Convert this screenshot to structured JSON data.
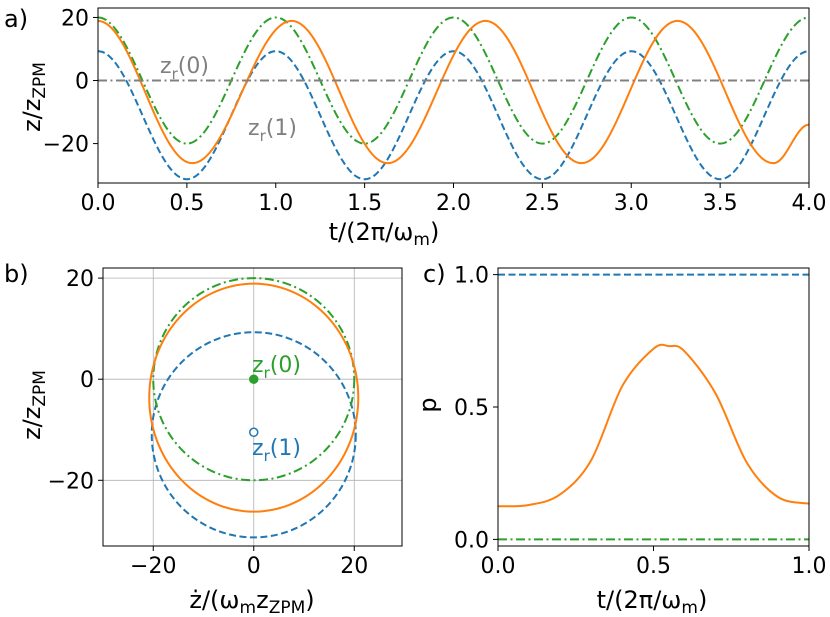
{
  "chart_data": [
    {
      "panel": "a)",
      "type": "line",
      "xlabel_main": "t/(2π/ω",
      "xlabel_sub": "m",
      "xlabel_close": ")",
      "ylabel_main": "z/z",
      "ylabel_sub": "ZPM",
      "xlim": [
        0.0,
        4.0
      ],
      "ylim": [
        -32.5,
        23.0
      ],
      "xticks": [
        "0.0",
        "0.5",
        "1.0",
        "1.5",
        "2.0",
        "2.5",
        "3.0",
        "3.5",
        "4.0"
      ],
      "yticks": [
        "−20",
        "0",
        "20"
      ],
      "annotations": [
        {
          "main": "z",
          "sub": "r",
          "rest": "(0)",
          "color": "#808080"
        },
        {
          "main": "z",
          "sub": "r",
          "rest": "(1)",
          "color": "#808080"
        }
      ],
      "series": [
        {
          "color": "#1f77b4",
          "dash": "dashed",
          "x": [
            0.0,
            0.5,
            1.0,
            1.5,
            2.0,
            2.5,
            3.0,
            3.5,
            4.0
          ],
          "y": [
            9.3,
            -31.3,
            9.3,
            -31.3,
            9.3,
            -31.3,
            9.3,
            -31.3,
            9.3
          ]
        },
        {
          "color": "#2ca02c",
          "dash": "dashdot",
          "x": [
            0.0,
            0.5,
            1.0,
            1.5,
            2.0,
            2.5,
            3.0,
            3.5,
            4.0
          ],
          "y": [
            20.0,
            -20.0,
            20.0,
            -20.0,
            20.0,
            -20.0,
            20.0,
            -20.0,
            20.0
          ]
        },
        {
          "color": "#ff7f0e",
          "dash": "solid",
          "x": [
            0.0,
            0.53,
            1.09,
            1.63,
            2.18,
            2.72,
            3.26,
            3.8,
            4.0
          ],
          "y": [
            18.9,
            -26.2,
            18.9,
            -26.2,
            18.9,
            -26.2,
            18.9,
            -26.2,
            -14.0
          ]
        },
        {
          "color": "#808080",
          "dash": "dashdot",
          "x": [
            0.0,
            4.0
          ],
          "y": [
            0.0,
            0.0
          ]
        }
      ]
    },
    {
      "panel": "b)",
      "type": "line",
      "xlabel_main": "ż/(ω",
      "xlabel_sub": "m",
      "xlabel_mid": "z",
      "xlabel_sub2": "ZPM",
      "xlabel_close": ")",
      "ylabel_main": "z/z",
      "ylabel_sub": "ZPM",
      "xlim": [
        -30.0,
        29.5
      ],
      "ylim": [
        -33.0,
        22.0
      ],
      "grid": true,
      "xticks": [
        "−20",
        "0",
        "20"
      ],
      "yticks": [
        "−20",
        "0",
        "20"
      ],
      "annotations": [
        {
          "main": "z",
          "sub": "r",
          "rest": "(0)",
          "color": "#2ca02c"
        },
        {
          "main": "z",
          "sub": "r",
          "rest": "(1)",
          "color": "#1f77b4"
        }
      ],
      "points": [
        {
          "x": 0.0,
          "y": 0.0,
          "color": "#2ca02c",
          "filled": true
        },
        {
          "x": 0.0,
          "y": -10.5,
          "color": "#1f77b4",
          "filled": false
        }
      ],
      "series": [
        {
          "color": "#1f77b4",
          "dash": "dashed",
          "x": [
            20.3,
            0.0,
            -20.3,
            0.0
          ],
          "y": [
            -11.0,
            9.3,
            -11.0,
            -31.3
          ]
        },
        {
          "color": "#2ca02c",
          "dash": "dashdot",
          "x": [
            20.0,
            0.0,
            -20.0,
            0.0
          ],
          "y": [
            0.0,
            20.0,
            0.0,
            -20.0
          ]
        },
        {
          "color": "#ff7f0e",
          "dash": "solid",
          "x": [
            20.8,
            0.0,
            -20.8,
            0.0
          ],
          "y": [
            -3.65,
            18.9,
            -3.65,
            -26.2
          ]
        }
      ]
    },
    {
      "panel": "c)",
      "type": "line",
      "xlabel_main": "t/(2π/ω",
      "xlabel_sub": "m",
      "xlabel_close": ")",
      "ylabel_main": "p",
      "xlim": [
        0.0,
        1.0
      ],
      "ylim": [
        -0.025,
        1.025
      ],
      "xticks": [
        "0.0",
        "0.5",
        "1.0"
      ],
      "yticks": [
        "0.0",
        "0.5",
        "1.0"
      ],
      "series": [
        {
          "color": "#1f77b4",
          "dash": "dashed",
          "x": [
            0.0,
            1.0
          ],
          "y": [
            1.0,
            1.0
          ]
        },
        {
          "color": "#2ca02c",
          "dash": "dashdot",
          "x": [
            0.0,
            1.0
          ],
          "y": [
            0.0,
            0.0
          ]
        },
        {
          "color": "#ff7f0e",
          "dash": "solid",
          "x": [
            0.0,
            0.1,
            0.2,
            0.3,
            0.4,
            0.5,
            0.55,
            0.6,
            0.7,
            0.8,
            0.9,
            1.0
          ],
          "y": [
            0.125,
            0.13,
            0.17,
            0.3,
            0.58,
            0.72,
            0.73,
            0.71,
            0.55,
            0.29,
            0.16,
            0.135
          ]
        }
      ]
    }
  ]
}
